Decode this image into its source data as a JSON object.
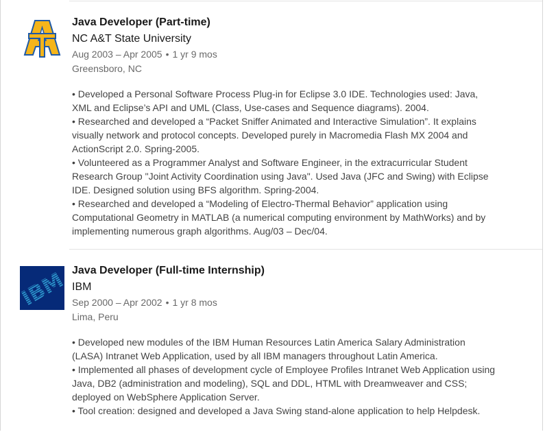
{
  "colors": {
    "card_border": "#d6d6d6",
    "divider": "#e3e3e3",
    "ibm_blue": "#062a78",
    "ncat_blue": "#1e5aa8",
    "ncat_gold": "#f5b51a"
  },
  "experiences": [
    {
      "logo_icon": "ncat-logo-icon",
      "title": "Java Developer (Part-time)",
      "company": "NC A&T State University",
      "date_range": "Aug 2003 – Apr 2005",
      "separator": "•",
      "duration": "1 yr 9 mos",
      "location": "Greensboro, NC",
      "description": [
        "• Developed a Personal Software Process Plug-in for Eclipse 3.0 IDE. Technologies used: Java, XML and Eclipse’s API and UML (Class, Use-cases and Sequence diagrams). 2004.",
        "• Researched and developed a “Packet Sniffer Animated and Interactive Simulation”. It explains visually network and protocol concepts. Developed purely in Macromedia Flash MX 2004 and ActionScript 2.0. Spring-2005.",
        "• Volunteered as a Programmer Analyst and Software Engineer, in the extracurricular Student Research Group \"Joint Activity Coordination using Java\". Used Java (JFC and Swing) with Eclipse IDE. Designed solution using BFS algorithm. Spring-2004.",
        "• Researched and developed a “Modeling of Electro-Thermal Behavior” application using Computational Geometry in MATLAB (a numerical computing environment by MathWorks) and by implementing numerous graph algorithms. Aug/03 – Dec/04."
      ]
    },
    {
      "logo_icon": "ibm-logo-icon",
      "logo_text": "IBM",
      "title": "Java Developer (Full-time Internship)",
      "company": "IBM",
      "date_range": "Sep 2000 – Apr 2002",
      "separator": "•",
      "duration": "1 yr 8 mos",
      "location": "Lima, Peru",
      "description": [
        "• Developed new modules of the IBM Human Resources Latin America Salary Administration (LASA) Intranet Web Application, used by all IBM managers throughout Latin America.",
        "• Implemented all phases of development cycle of Employee Profiles Intranet Web Application using Java, DB2 (administration and modeling), SQL and DDL, HTML with Dreamweaver and CSS; deployed on WebSphere Application Server.",
        "• Tool creation: designed and developed a Java Swing stand-alone application to help Helpdesk."
      ]
    }
  ]
}
